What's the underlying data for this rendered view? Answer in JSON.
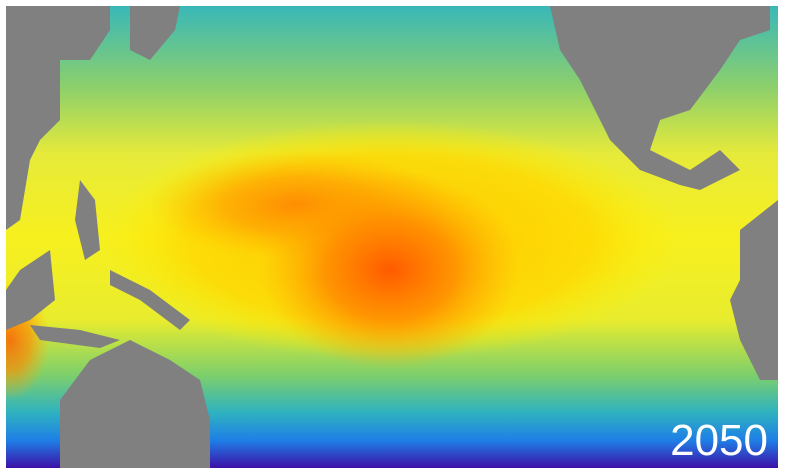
{
  "label": "2050"
}
